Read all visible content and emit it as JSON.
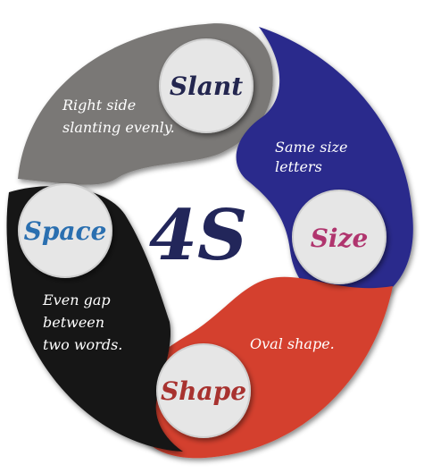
{
  "diagram": {
    "center_label": "4S",
    "segments": [
      {
        "key": "slant",
        "title": "Slant",
        "description": [
          "Right side",
          "slanting evenly."
        ],
        "fill": "#7a7876",
        "title_color": "#23264f"
      },
      {
        "key": "size",
        "title": "Size",
        "description": [
          "Same size",
          "letters"
        ],
        "fill": "#2a2a8c",
        "title_color": "#b0356e"
      },
      {
        "key": "shape",
        "title": "Shape",
        "description": [
          "Oval shape."
        ],
        "fill": "#d4412f",
        "title_color": "#a8322f"
      },
      {
        "key": "space",
        "title": "Space",
        "description": [
          "Even gap",
          "between",
          "two words."
        ],
        "fill": "#131313",
        "title_color": "#2a6fb0"
      }
    ],
    "colors": {
      "center_text": "#22265a",
      "circle_fill": "#e6e6e6",
      "background": "#ffffff"
    }
  }
}
